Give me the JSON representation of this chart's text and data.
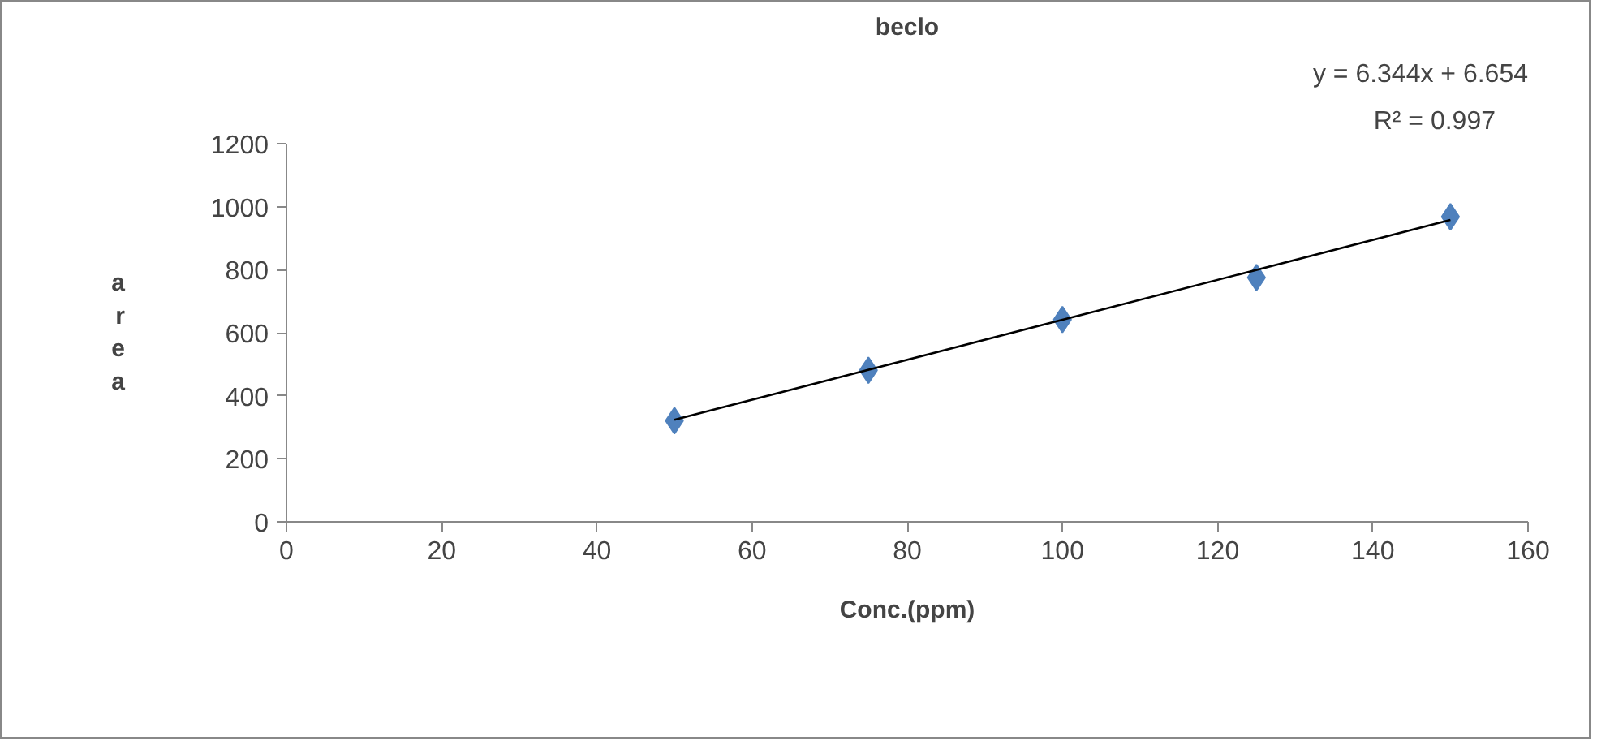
{
  "chart_data": {
    "type": "scatter",
    "title": "beclo",
    "xlabel": "Conc.(ppm)",
    "ylabel": "area",
    "annotations": [
      "y = 6.344x + 6.654",
      "R² = 0.997"
    ],
    "series": [
      {
        "color": "#4f81bd",
        "marker": "diamond",
        "x": [
          50,
          75,
          100,
          125,
          150
        ],
        "values": [
          321,
          481,
          642,
          775,
          968
        ]
      },
      {
        "type": "line",
        "color": "#000000",
        "x": [
          50,
          150
        ],
        "values": [
          324,
          958
        ]
      }
    ],
    "xlim": [
      0,
      160
    ],
    "xticks": [
      0,
      20,
      40,
      60,
      80,
      100,
      120,
      140,
      160
    ],
    "ylim": [
      0,
      1200
    ],
    "yticks": [
      0,
      200,
      400,
      600,
      800,
      1000,
      1200
    ],
    "grid": false
  }
}
